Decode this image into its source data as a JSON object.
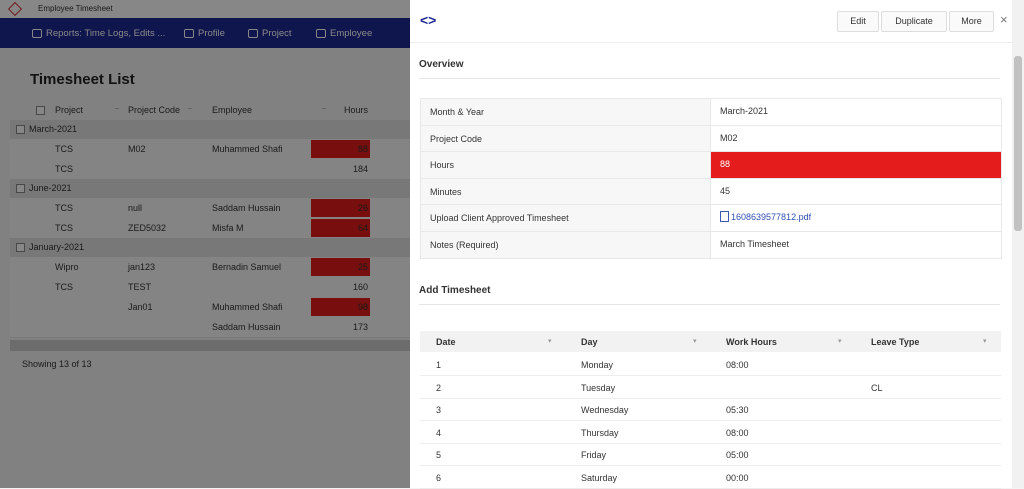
{
  "app_title": "Employee Timesheet",
  "nav": [
    "Reports: Time Logs, Edits ...",
    "Profile",
    "Project",
    "Employee"
  ],
  "list": {
    "title": "Timesheet List",
    "columns": [
      "Project",
      "Project Code",
      "Employee",
      "Hours"
    ],
    "groups": [
      {
        "name": "March-2021",
        "rows": [
          {
            "project": "TCS",
            "code": "M02",
            "employee": "Muhammed Shafi",
            "hours": 88,
            "flagged": true
          },
          {
            "project": "TCS",
            "code": null,
            "employee": null,
            "hours": 184
          }
        ]
      },
      {
        "name": "June-2021",
        "rows": [
          {
            "project": "TCS",
            "code": "null",
            "employee": "Saddam Hussain",
            "hours": 26,
            "flagged": true
          },
          {
            "project": "TCS",
            "code": "ZED5032",
            "employee": "Misfa M",
            "hours": 64,
            "flagged": true
          }
        ]
      },
      {
        "name": "January-2021",
        "rows": [
          {
            "project": "Wipro",
            "code": "jan123",
            "employee": "Bernadin Samuel",
            "hours": 25,
            "flagged": true
          },
          {
            "project": "TCS",
            "code": "TEST",
            "employee": null,
            "hours": 160
          },
          {
            "project": null,
            "code": "Jan01",
            "employee": "Muhammed Shafi",
            "hours": 98,
            "flagged": true
          },
          {
            "project": null,
            "code": null,
            "employee": "Saddam Hussain",
            "hours": 173
          }
        ]
      }
    ],
    "footer": "Showing 13 of 13"
  },
  "panel": {
    "actions": [
      "Edit",
      "Duplicate",
      "More"
    ],
    "overview": {
      "title": "Overview",
      "fields": [
        {
          "label": "Month & Year",
          "value": "March-2021"
        },
        {
          "label": "Project Code",
          "value": "M02"
        },
        {
          "label": "Hours",
          "value": 88,
          "highlight": true
        },
        {
          "label": "Minutes",
          "value": 45
        },
        {
          "label": "Upload Client Approved Timesheet",
          "value": "1608639577812.pdf",
          "link": true
        },
        {
          "label": "Notes (Required)",
          "value": "March Timesheet"
        }
      ]
    },
    "timesheet": {
      "title": "Add Timesheet",
      "columns": [
        "Date",
        "Day",
        "Work Hours",
        "Leave Type"
      ],
      "rows": [
        [
          1,
          "Monday",
          "08:00",
          null
        ],
        [
          2,
          "Tuesday",
          null,
          "CL"
        ],
        [
          3,
          "Wednesday",
          "05:30",
          null
        ],
        [
          4,
          "Thursday",
          "08:00",
          null
        ],
        [
          5,
          "Friday",
          "05:00",
          null
        ],
        [
          6,
          "Saturday",
          "00:00",
          null
        ]
      ]
    }
  }
}
